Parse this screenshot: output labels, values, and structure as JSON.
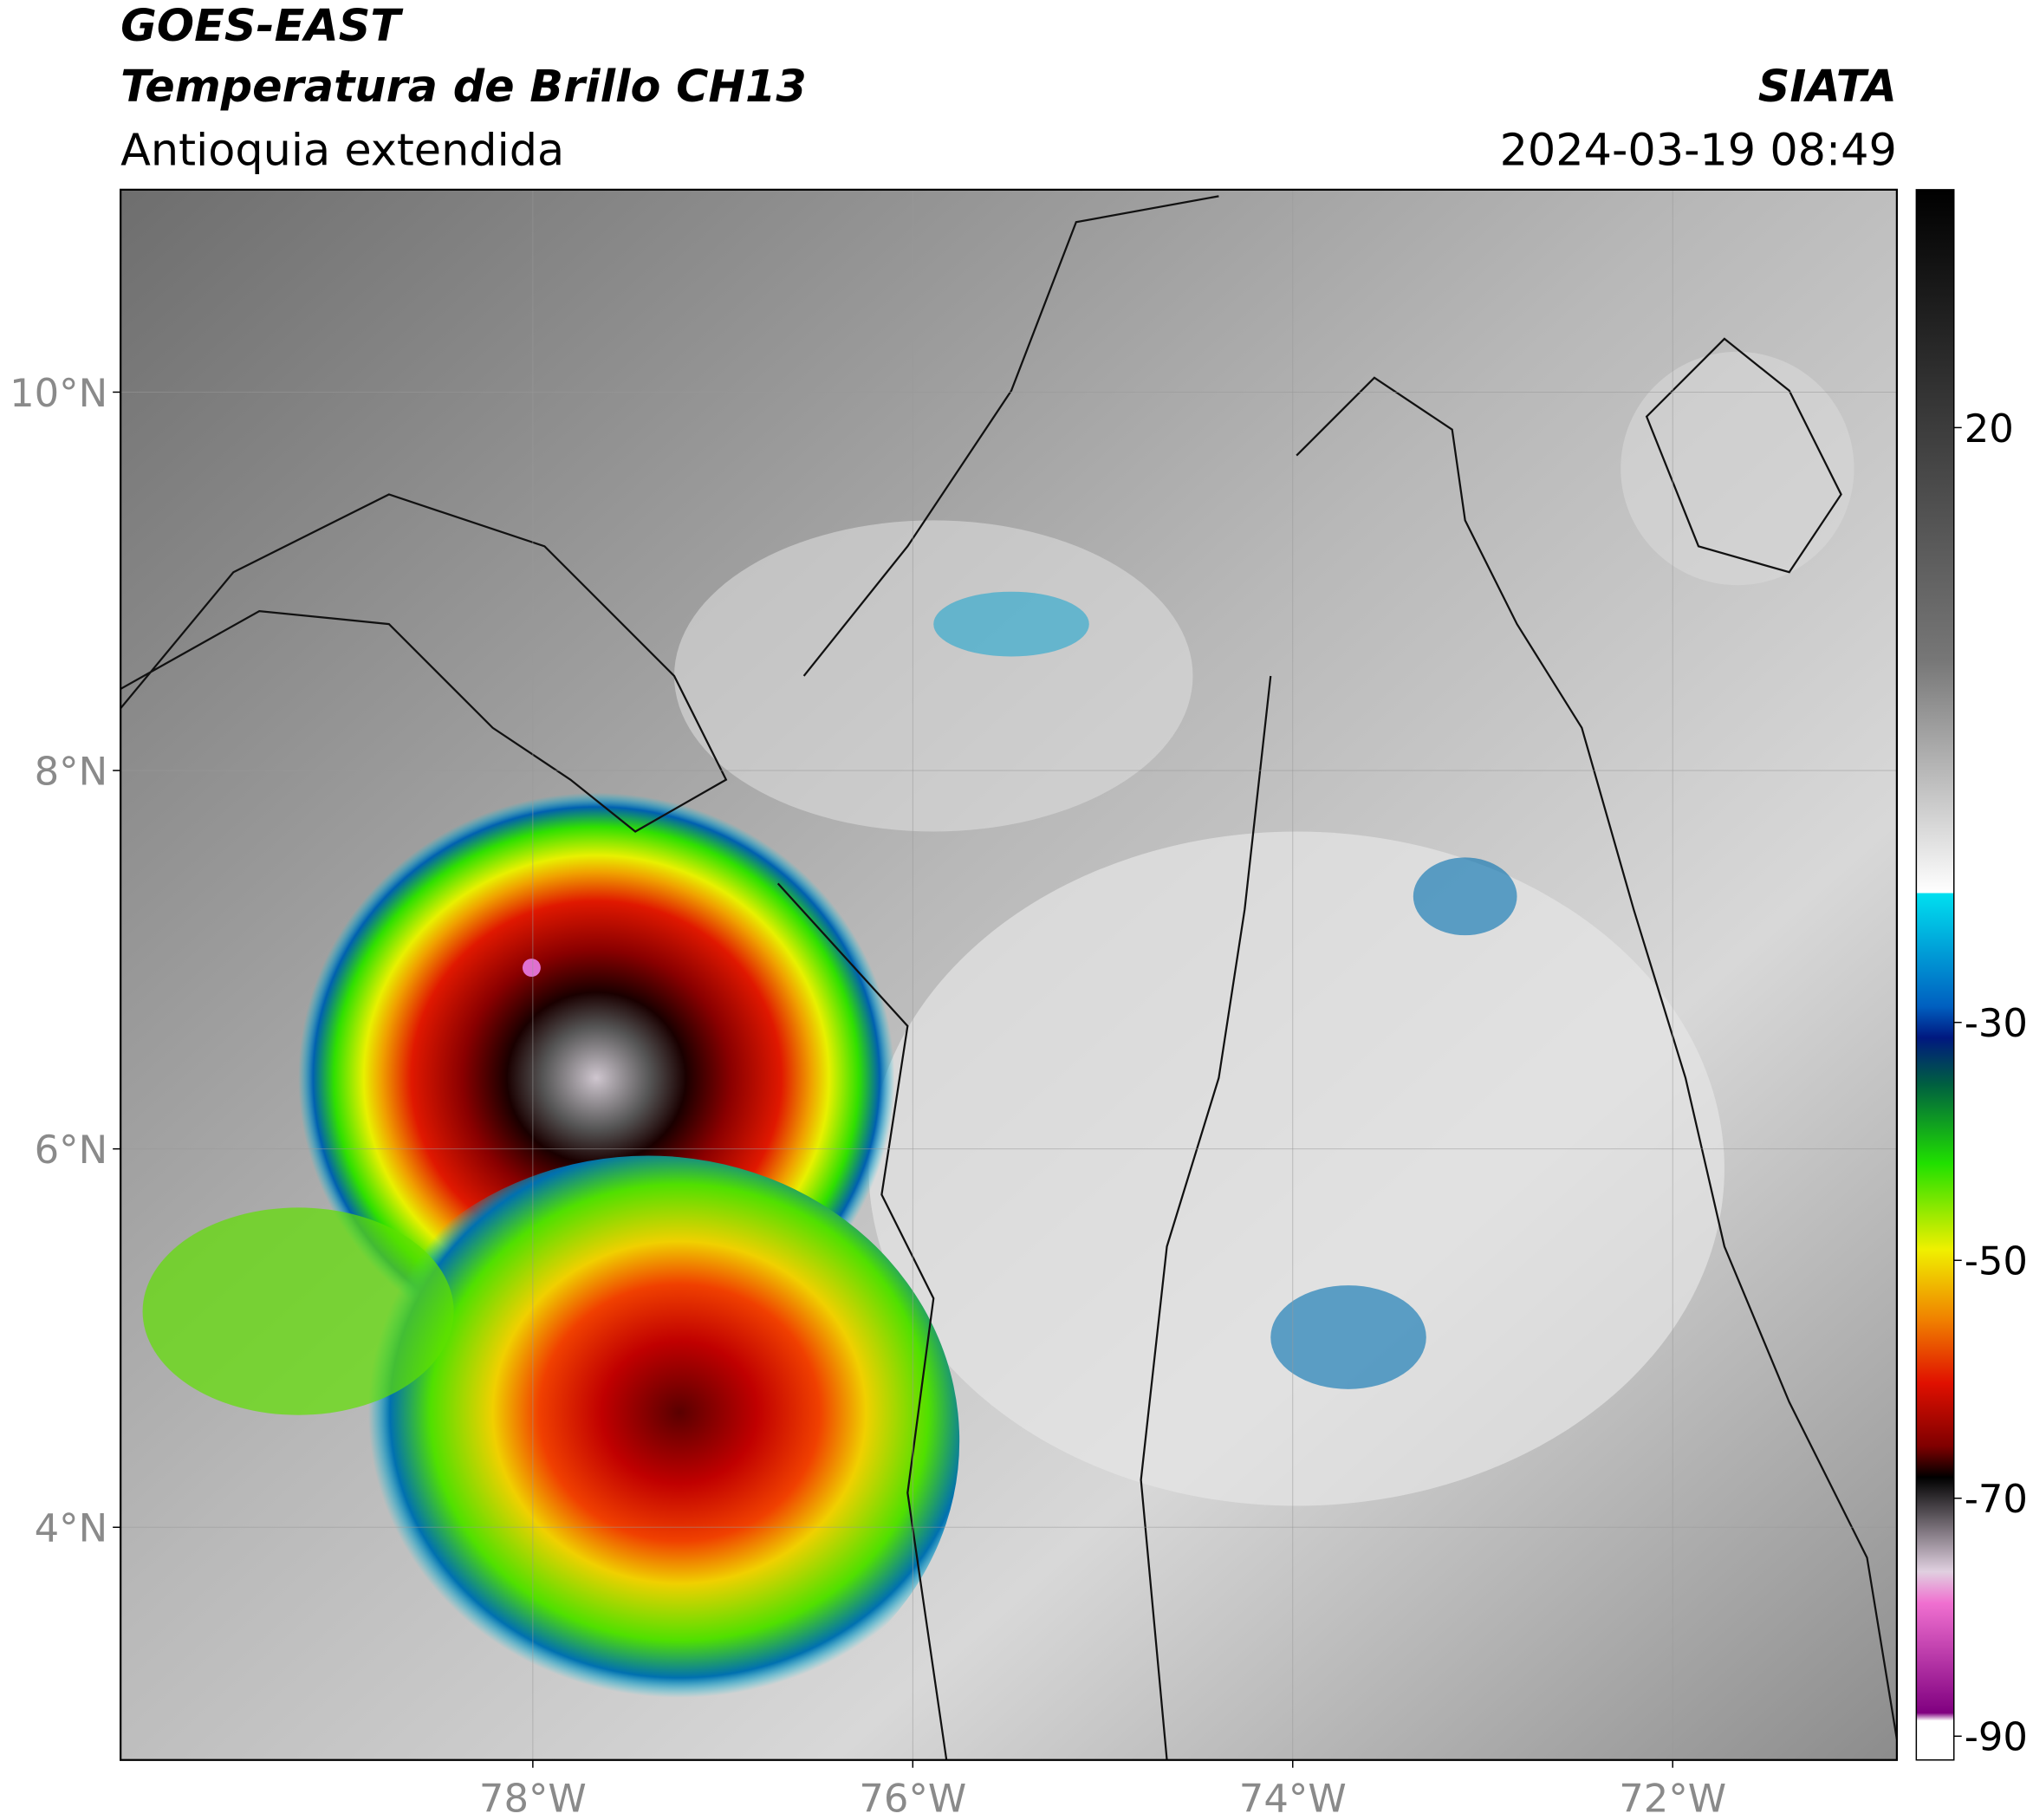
{
  "header": {
    "title": "GOES-EAST",
    "subtitle": "Temperatura de Brillo CH13",
    "region": "Antioquia extendida",
    "source": "SIATA",
    "datetime": "2024-03-19 08:49"
  },
  "map": {
    "lon_range": [
      -80.17,
      -70.82
    ],
    "lat_range": [
      2.77,
      11.07
    ],
    "lon_ticks": [
      {
        "value": -78,
        "label": "78°W"
      },
      {
        "value": -76,
        "label": "76°W"
      },
      {
        "value": -74,
        "label": "74°W"
      },
      {
        "value": -72,
        "label": "72°W"
      }
    ],
    "lat_ticks": [
      {
        "value": 4,
        "label": "4°N"
      },
      {
        "value": 6,
        "label": "6°N"
      },
      {
        "value": 8,
        "label": "8°N"
      },
      {
        "value": 10,
        "label": "10°N"
      }
    ],
    "grid": true
  },
  "colorbar": {
    "range": [
      -92,
      40
    ],
    "ticks": [
      20,
      -30,
      -50,
      -70,
      -90
    ]
  }
}
